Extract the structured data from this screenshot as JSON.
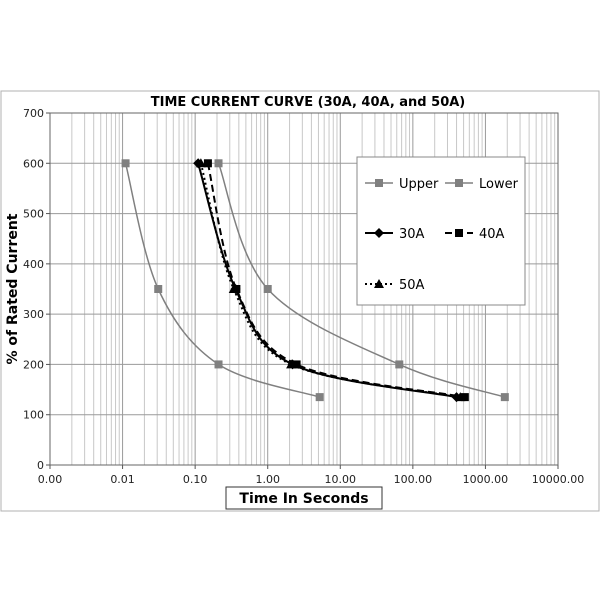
{
  "chart_data": {
    "type": "line",
    "title": "TIME CURRENT CURVE (30A, 40A, and 50A)",
    "xlabel": "Time In Seconds",
    "ylabel": "% of Rated Current",
    "x_scale": "log",
    "xlim": [
      0.001,
      10000
    ],
    "ylim": [
      0,
      700
    ],
    "x_ticks": [
      0.001,
      0.01,
      0.1,
      1,
      10,
      100,
      1000,
      10000
    ],
    "x_tick_labels": [
      "0.00",
      "0.01",
      "0.10",
      "1.00",
      "10.00",
      "100.00",
      "1000.00",
      "10000.00"
    ],
    "y_ticks": [
      0,
      100,
      200,
      300,
      400,
      500,
      600,
      700
    ],
    "y_tick_labels": [
      "0",
      "100",
      "200",
      "300",
      "400",
      "500",
      "600",
      "700"
    ],
    "grid": true,
    "legend_position": "right",
    "series": [
      {
        "name": "Upper",
        "color": "#808080",
        "marker": "square",
        "dash": "solid",
        "x": [
          0.21,
          1.0,
          65,
          1850
        ],
        "y": [
          600,
          350,
          200,
          135
        ]
      },
      {
        "name": "Lower",
        "color": "#808080",
        "marker": "square",
        "dash": "solid",
        "x": [
          0.011,
          0.031,
          0.21,
          5.2
        ],
        "y": [
          600,
          350,
          200,
          135
        ]
      },
      {
        "name": "30A",
        "color": "#000000",
        "marker": "diamond",
        "dash": "solid",
        "x": [
          0.11,
          0.36,
          2.2,
          400
        ],
        "y": [
          600,
          350,
          200,
          135
        ]
      },
      {
        "name": "40A",
        "color": "#000000",
        "marker": "square",
        "dash": "dashed",
        "x": [
          0.15,
          0.37,
          2.5,
          520
        ],
        "y": [
          600,
          350,
          200,
          135
        ]
      },
      {
        "name": "50A",
        "color": "#000000",
        "marker": "triangle",
        "dash": "dotted",
        "x": [
          0.12,
          0.34,
          2.1,
          450
        ],
        "y": [
          600,
          350,
          200,
          135
        ]
      }
    ]
  }
}
